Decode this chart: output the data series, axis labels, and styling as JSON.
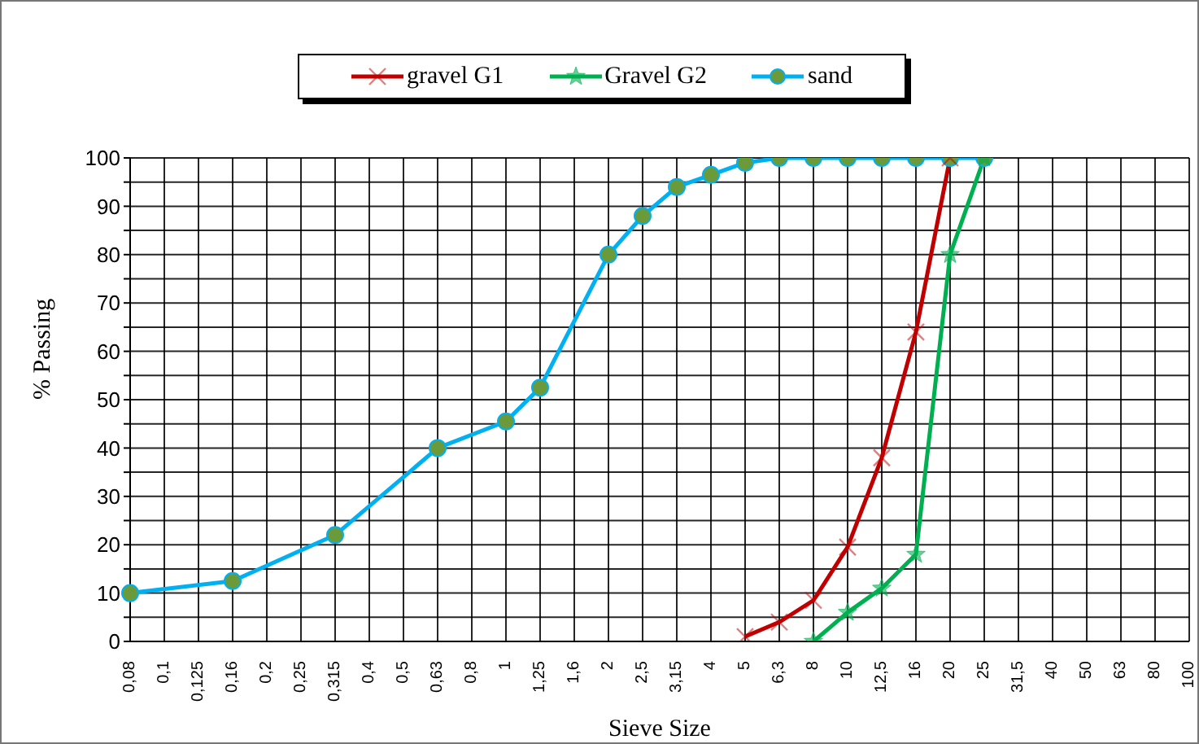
{
  "chart_data": {
    "type": "line",
    "xlabel": "Sieve Size",
    "ylabel": "% Passing",
    "categories": [
      "0,08",
      "0,1",
      "0,125",
      "0,16",
      "0,2",
      "0,25",
      "0,315",
      "0,4",
      "0,5",
      "0,63",
      "0,8",
      "1",
      "1,25",
      "1,6",
      "2",
      "2,5",
      "3,15",
      "4",
      "5",
      "6,3",
      "8",
      "10",
      "12,5",
      "16",
      "20",
      "25",
      "31,5",
      "40",
      "50",
      "63",
      "80",
      "100"
    ],
    "series": [
      {
        "name": "gravel G1",
        "color": "#c00000",
        "marker": "cross",
        "values": [
          null,
          null,
          null,
          null,
          null,
          null,
          null,
          null,
          null,
          null,
          null,
          null,
          null,
          null,
          null,
          null,
          null,
          null,
          1,
          4,
          8.5,
          19.5,
          38,
          64,
          100,
          null,
          null,
          null,
          null,
          null,
          null,
          null
        ]
      },
      {
        "name": "Gravel G2",
        "color": "#00b050",
        "marker": "star",
        "values": [
          null,
          null,
          null,
          null,
          null,
          null,
          null,
          null,
          null,
          null,
          null,
          null,
          null,
          null,
          null,
          null,
          null,
          null,
          null,
          null,
          0,
          6,
          11,
          18,
          80,
          100,
          null,
          null,
          null,
          null,
          null,
          null
        ]
      },
      {
        "name": "sand",
        "color": "#00b0f0",
        "marker": "circle",
        "values": [
          10,
          null,
          null,
          12.5,
          null,
          null,
          22,
          null,
          null,
          40,
          null,
          45.5,
          52.5,
          null,
          80,
          88,
          94,
          96.5,
          99,
          100,
          100,
          100,
          100,
          100,
          100,
          100,
          null,
          null,
          null,
          null,
          null,
          null
        ]
      }
    ],
    "ylim": [
      0,
      100
    ],
    "yticks": [
      0,
      {
        "value": 5,
        "label": null
      },
      10,
      {
        "value": 15,
        "label": null
      },
      20,
      {
        "value": 25,
        "label": null
      },
      30,
      {
        "value": 35,
        "label": null
      },
      40,
      {
        "value": 45,
        "label": null
      },
      50,
      {
        "value": 55,
        "label": null
      },
      60,
      {
        "value": 65,
        "label": null
      },
      70,
      {
        "value": 75,
        "label": null
      },
      80,
      {
        "value": 85,
        "label": null
      },
      90,
      {
        "value": 95,
        "label": null
      },
      100
    ],
    "grid": true,
    "legend": "top"
  }
}
